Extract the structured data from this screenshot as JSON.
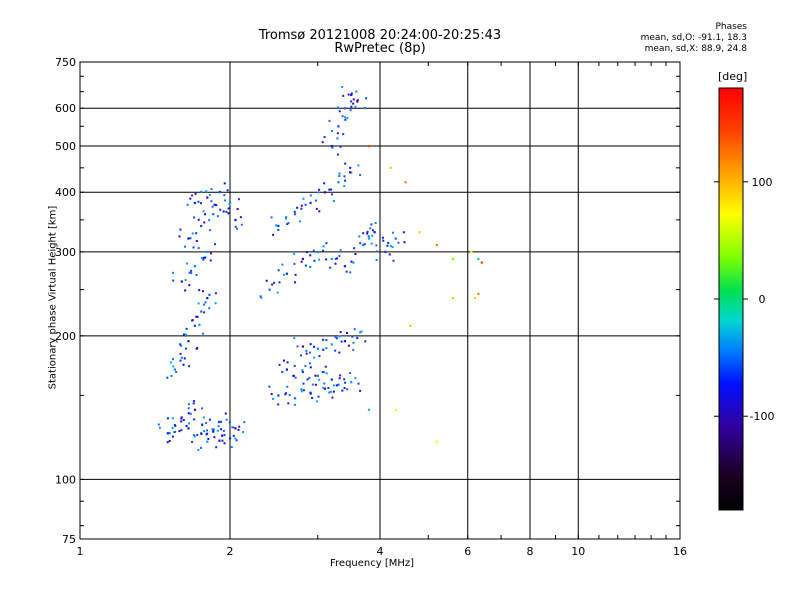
{
  "chart_data": {
    "type": "scatter",
    "title": "Tromsø 20121008 20:24:00-20:25:43",
    "subtitle": "RwPretec (8p)",
    "stats": {
      "heading": "Phases",
      "line1": "mean, sd,O: -91.1, 18.3",
      "line2": "mean, sd,X:  88.9, 24.8"
    },
    "xlabel": "Frequency [MHz]",
    "ylabel": "Stationary phase Virtual Height [km]",
    "xscale": "log",
    "yscale": "log",
    "xlim": [
      1,
      16
    ],
    "ylim": [
      75,
      750
    ],
    "x_ticks": [
      1,
      2,
      4,
      6,
      8,
      10,
      16
    ],
    "x_grid": [
      2,
      4,
      6,
      8,
      10
    ],
    "y_ticks": [
      75,
      100,
      200,
      300,
      400,
      500,
      600,
      750
    ],
    "y_grid": [
      100,
      200,
      300,
      400,
      500,
      600
    ],
    "grid": true,
    "colorbar": {
      "label": "[deg]",
      "range": [
        -180,
        180
      ],
      "ticks": [
        100,
        0,
        -100
      ]
    },
    "series": [
      {
        "o_mode": true,
        "points": [
          [
            1.5,
            125
          ],
          [
            1.55,
            130
          ],
          [
            1.6,
            135
          ],
          [
            1.65,
            128
          ],
          [
            1.7,
            140
          ],
          [
            1.75,
            125
          ],
          [
            1.8,
            120
          ],
          [
            1.85,
            126
          ],
          [
            1.9,
            132
          ],
          [
            1.95,
            124
          ],
          [
            2.0,
            122
          ],
          [
            2.05,
            128
          ],
          [
            1.55,
            170
          ],
          [
            1.6,
            180
          ],
          [
            1.65,
            195
          ],
          [
            1.7,
            210
          ],
          [
            1.75,
            225
          ],
          [
            1.8,
            240
          ],
          [
            1.6,
            260
          ],
          [
            1.7,
            280
          ],
          [
            1.8,
            300
          ],
          [
            1.65,
            320
          ],
          [
            1.75,
            340
          ],
          [
            1.85,
            360
          ],
          [
            1.7,
            380
          ],
          [
            1.8,
            390
          ],
          [
            1.9,
            400
          ],
          [
            2.0,
            380
          ],
          [
            2.05,
            350
          ],
          [
            2.5,
            150
          ],
          [
            2.7,
            148
          ],
          [
            2.9,
            152
          ],
          [
            3.1,
            155
          ],
          [
            3.3,
            158
          ],
          [
            3.5,
            160
          ],
          [
            2.6,
            170
          ],
          [
            2.8,
            168
          ],
          [
            3.0,
            165
          ],
          [
            3.2,
            162
          ],
          [
            2.8,
            190
          ],
          [
            3.0,
            188
          ],
          [
            3.2,
            192
          ],
          [
            3.4,
            195
          ],
          [
            3.6,
            198
          ],
          [
            2.4,
            250
          ],
          [
            2.6,
            270
          ],
          [
            2.8,
            290
          ],
          [
            3.0,
            300
          ],
          [
            3.2,
            290
          ],
          [
            3.4,
            280
          ],
          [
            2.5,
            340
          ],
          [
            2.7,
            360
          ],
          [
            2.9,
            380
          ],
          [
            3.1,
            400
          ],
          [
            3.3,
            420
          ],
          [
            3.5,
            440
          ],
          [
            3.2,
            500
          ],
          [
            3.3,
            550
          ],
          [
            3.4,
            600
          ],
          [
            3.5,
            640
          ],
          [
            3.6,
            620
          ],
          [
            3.7,
            310
          ],
          [
            3.8,
            320
          ],
          [
            3.9,
            330
          ],
          [
            4.1,
            300
          ],
          [
            4.3,
            320
          ]
        ]
      },
      {
        "x_mode": true,
        "points": [
          [
            4.8,
            330
          ],
          [
            5.2,
            310
          ],
          [
            5.6,
            290
          ],
          [
            6.1,
            300
          ],
          [
            6.3,
            290
          ],
          [
            6.4,
            285
          ],
          [
            6.2,
            240
          ],
          [
            6.3,
            245
          ],
          [
            4.6,
            210
          ],
          [
            4.3,
            140
          ],
          [
            3.8,
            140
          ],
          [
            3.8,
            500
          ],
          [
            4.2,
            450
          ],
          [
            4.5,
            420
          ],
          [
            5.6,
            240
          ],
          [
            5.2,
            120
          ]
        ]
      }
    ]
  }
}
